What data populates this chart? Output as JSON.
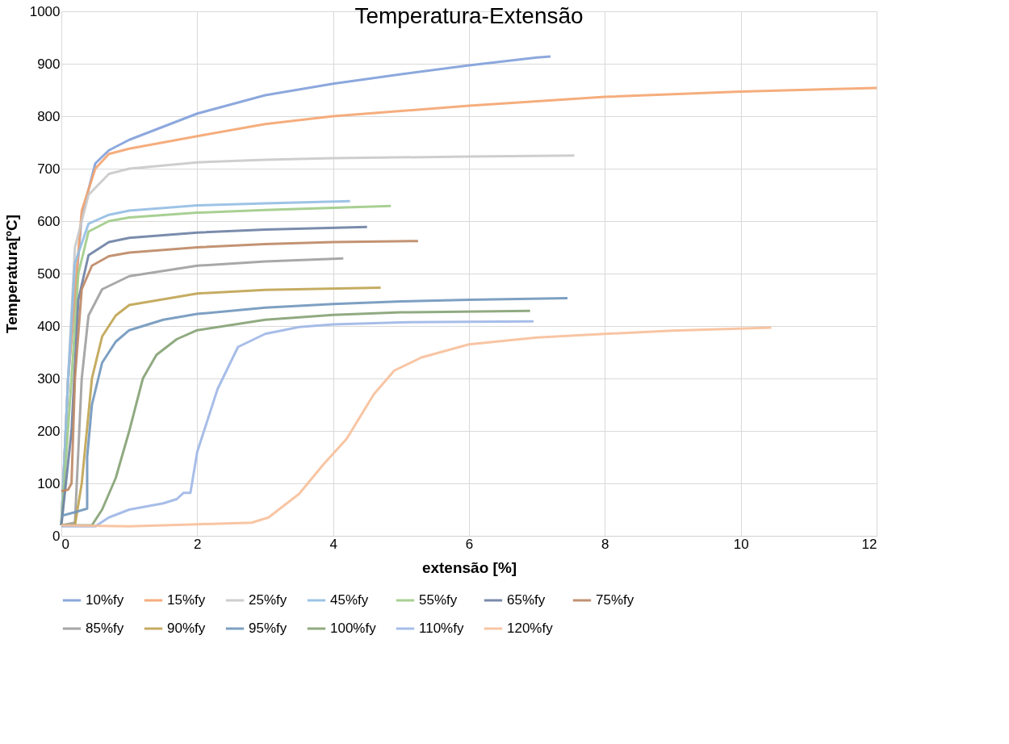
{
  "chart_data": {
    "type": "line",
    "title": "Temperatura-Extensão",
    "xlabel": "extensão [%]",
    "ylabel": "Temperatura[ºC]",
    "xlim": [
      0,
      12
    ],
    "xticks": [
      0,
      2,
      4,
      6,
      8,
      10,
      12
    ],
    "ylim": [
      0,
      1000
    ],
    "yticks": [
      0,
      100,
      200,
      300,
      400,
      500,
      600,
      700,
      800,
      900,
      1000
    ],
    "grid": true,
    "legend": "bottom",
    "marker": "none",
    "line_style": "solid",
    "series": [
      {
        "name": "10%fy",
        "color": "#7f9fd9",
        "x": [
          0,
          0.1,
          0.3,
          0.5,
          0.7,
          1,
          2,
          3,
          4,
          5,
          6,
          7,
          7.2
        ],
        "values": [
          20,
          300,
          610,
          710,
          735,
          755,
          805,
          840,
          862,
          880,
          897,
          912,
          914
        ]
      },
      {
        "name": "15%fy",
        "color": "#f4a46f",
        "x": [
          0,
          0.1,
          0.3,
          0.5,
          0.7,
          1,
          2,
          3,
          4,
          6,
          8,
          10,
          12
        ],
        "values": [
          20,
          300,
          620,
          700,
          728,
          738,
          762,
          785,
          800,
          820,
          837,
          847,
          854
        ]
      },
      {
        "name": "25%fy",
        "color": "#c9c9c9",
        "x": [
          0,
          0.1,
          0.2,
          0.4,
          0.7,
          1,
          2,
          3,
          4,
          6,
          7.55
        ],
        "values": [
          20,
          300,
          550,
          650,
          690,
          700,
          712,
          717,
          720,
          723,
          725
        ]
      },
      {
        "name": "45%fy",
        "color": "#92bde3",
        "x": [
          0,
          0.1,
          0.2,
          0.4,
          0.7,
          1,
          2,
          3,
          4.25
        ],
        "values": [
          20,
          300,
          520,
          595,
          612,
          620,
          630,
          634,
          638
        ]
      },
      {
        "name": "55%fy",
        "color": "#9fcb87",
        "x": [
          0,
          0.15,
          0.25,
          0.4,
          0.7,
          1,
          2,
          3,
          4.85
        ],
        "values": [
          20,
          300,
          500,
          580,
          600,
          607,
          616,
          621,
          629
        ]
      },
      {
        "name": "65%fy",
        "color": "#6c7fa3",
        "x": [
          0,
          0.15,
          0.25,
          0.4,
          0.7,
          1,
          2,
          3,
          4.5
        ],
        "values": [
          20,
          200,
          450,
          535,
          560,
          568,
          578,
          584,
          589
        ]
      },
      {
        "name": "75%fy",
        "color": "#bd8764",
        "x": [
          0,
          0.1,
          0.15,
          0.2,
          0.3,
          0.45,
          0.7,
          1,
          2,
          3,
          4,
          5.25
        ],
        "values": [
          85,
          88,
          100,
          300,
          470,
          515,
          533,
          540,
          550,
          556,
          560,
          562
        ]
      },
      {
        "name": "85%fy",
        "color": "#9e9e9e",
        "x": [
          0,
          0.2,
          0.3,
          0.4,
          0.6,
          1,
          2,
          3,
          4.15
        ],
        "values": [
          20,
          25,
          300,
          420,
          470,
          495,
          515,
          523,
          529
        ]
      },
      {
        "name": "90%fy",
        "color": "#bfa350",
        "x": [
          0,
          0.2,
          0.3,
          0.45,
          0.6,
          0.8,
          1,
          2,
          3,
          4.7
        ],
        "values": [
          20,
          20,
          100,
          300,
          380,
          420,
          440,
          462,
          469,
          473
        ]
      },
      {
        "name": "95%fy",
        "color": "#6f96bb",
        "x": [
          0,
          0.2,
          0.38,
          0.38,
          0.45,
          0.6,
          0.8,
          1,
          1.5,
          2,
          3,
          4,
          5,
          6,
          7.45
        ],
        "values": [
          38,
          45,
          52,
          150,
          250,
          330,
          370,
          392,
          412,
          423,
          435,
          442,
          447,
          450,
          453
        ]
      },
      {
        "name": "100%fy",
        "color": "#84a173",
        "x": [
          0,
          0.45,
          0.6,
          0.8,
          1,
          1.2,
          1.4,
          1.7,
          2,
          3,
          4,
          5,
          6.9
        ],
        "values": [
          20,
          20,
          50,
          110,
          200,
          300,
          345,
          375,
          392,
          412,
          421,
          426,
          429
        ]
      },
      {
        "name": "110%fy",
        "color": "#9db6e6",
        "x": [
          0,
          0.5,
          0.7,
          1,
          1.5,
          1.7,
          1.8,
          1.9,
          2,
          2.3,
          2.6,
          3,
          3.5,
          4,
          5,
          6.95
        ],
        "values": [
          18,
          18,
          35,
          50,
          62,
          70,
          82,
          82,
          160,
          280,
          360,
          385,
          398,
          403,
          407,
          409
        ]
      },
      {
        "name": "120%fy",
        "color": "#f7bf99",
        "x": [
          0,
          1,
          2,
          2.8,
          3.05,
          3.5,
          3.85,
          4.2,
          4.6,
          4.9,
          5.3,
          6,
          7,
          8,
          9,
          10.45
        ],
        "values": [
          20,
          18,
          22,
          25,
          35,
          80,
          135,
          185,
          270,
          315,
          340,
          365,
          378,
          385,
          391,
          397
        ]
      }
    ]
  }
}
